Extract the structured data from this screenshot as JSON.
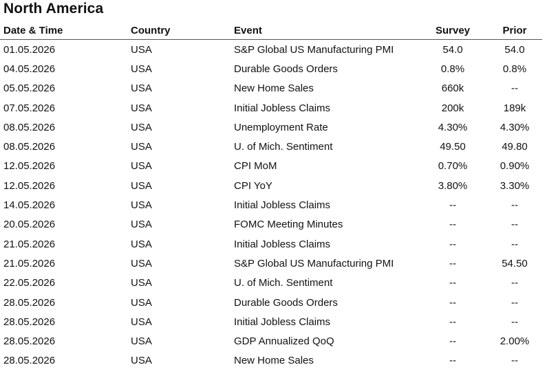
{
  "title": "North America",
  "columns": {
    "date": "Date & Time",
    "country": "Country",
    "event": "Event",
    "survey": "Survey",
    "prior": "Prior"
  },
  "rows": [
    {
      "date": "01.05.2026",
      "country": "USA",
      "event": "S&P Global US Manufacturing PMI",
      "survey": "54.0",
      "prior": "54.0"
    },
    {
      "date": "04.05.2026",
      "country": "USA",
      "event": "Durable Goods Orders",
      "survey": "0.8%",
      "prior": "0.8%"
    },
    {
      "date": "05.05.2026",
      "country": "USA",
      "event": "New Home Sales",
      "survey": "660k",
      "prior": "--"
    },
    {
      "date": "07.05.2026",
      "country": "USA",
      "event": "Initial Jobless Claims",
      "survey": "200k",
      "prior": "189k"
    },
    {
      "date": "08.05.2026",
      "country": "USA",
      "event": "Unemployment Rate",
      "survey": "4.30%",
      "prior": "4.30%"
    },
    {
      "date": "08.05.2026",
      "country": "USA",
      "event": "U. of Mich. Sentiment",
      "survey": "49.50",
      "prior": "49.80"
    },
    {
      "date": "12.05.2026",
      "country": "USA",
      "event": "CPI MoM",
      "survey": "0.70%",
      "prior": "0.90%"
    },
    {
      "date": "12.05.2026",
      "country": "USA",
      "event": "CPI YoY",
      "survey": "3.80%",
      "prior": "3.30%"
    },
    {
      "date": "14.05.2026",
      "country": "USA",
      "event": "Initial Jobless Claims",
      "survey": "--",
      "prior": "--"
    },
    {
      "date": "20.05.2026",
      "country": "USA",
      "event": "FOMC Meeting Minutes",
      "survey": "--",
      "prior": "--"
    },
    {
      "date": "21.05.2026",
      "country": "USA",
      "event": "Initial Jobless Claims",
      "survey": "--",
      "prior": "--"
    },
    {
      "date": "21.05.2026",
      "country": "USA",
      "event": "S&P Global US Manufacturing PMI",
      "survey": "--",
      "prior": "54.50"
    },
    {
      "date": "22.05.2026",
      "country": "USA",
      "event": "U. of Mich. Sentiment",
      "survey": "--",
      "prior": "--"
    },
    {
      "date": "28.05.2026",
      "country": "USA",
      "event": "Durable Goods Orders",
      "survey": "--",
      "prior": "--"
    },
    {
      "date": "28.05.2026",
      "country": "USA",
      "event": "Initial Jobless Claims",
      "survey": "--",
      "prior": "--"
    },
    {
      "date": "28.05.2026",
      "country": "USA",
      "event": "GDP Annualized QoQ",
      "survey": "--",
      "prior": "2.00%"
    },
    {
      "date": "28.05.2026",
      "country": "USA",
      "event": "New Home Sales",
      "survey": "--",
      "prior": "--"
    }
  ]
}
